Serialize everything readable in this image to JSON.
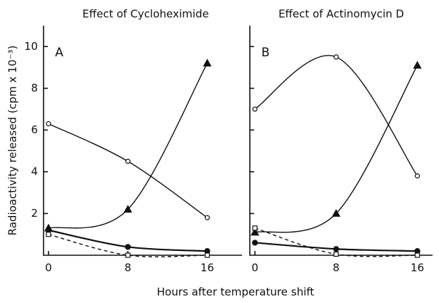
{
  "ylabel": "Radioactivity released (cpm x 10⁻³)",
  "xlabel": "Hours after temperature shift",
  "chart_data": [
    {
      "type": "line",
      "title": "Effect of Cycloheximide",
      "panel": "A",
      "x": [
        0,
        8,
        16
      ],
      "xlim": [
        -0.5,
        19.5
      ],
      "xticks": [
        0,
        8,
        16
      ],
      "ylim": [
        0,
        11
      ],
      "yticks": [
        2,
        4,
        6,
        8,
        10
      ],
      "ytick_labels": true,
      "series": [
        {
          "marker": "circle",
          "filled": false,
          "dashed": false,
          "color": "#111111",
          "values": [
            6.3,
            4.5,
            1.8
          ]
        },
        {
          "marker": "triangle",
          "filled": true,
          "dashed": false,
          "color": "#111111",
          "values": [
            1.3,
            2.2,
            9.2
          ]
        },
        {
          "marker": "circle",
          "filled": true,
          "dashed": false,
          "color": "#111111",
          "values": [
            1.2,
            0.4,
            0.2
          ]
        },
        {
          "marker": "square",
          "filled": false,
          "dashed": true,
          "color": "#111111",
          "values": [
            1.0,
            0.0,
            0.0
          ]
        }
      ]
    },
    {
      "type": "line",
      "title": "Effect of Actinomycin D",
      "panel": "B",
      "x": [
        0,
        8,
        16
      ],
      "xlim": [
        -0.5,
        17.5
      ],
      "xticks": [
        0,
        8,
        16
      ],
      "ylim": [
        0,
        11
      ],
      "yticks": [
        2,
        4,
        6,
        8,
        10
      ],
      "ytick_labels": false,
      "series": [
        {
          "marker": "circle",
          "filled": false,
          "dashed": false,
          "color": "#111111",
          "values": [
            7.0,
            9.5,
            3.8
          ]
        },
        {
          "marker": "triangle",
          "filled": true,
          "dashed": false,
          "color": "#111111",
          "values": [
            1.1,
            2.0,
            9.1
          ]
        },
        {
          "marker": "circle",
          "filled": true,
          "dashed": false,
          "color": "#111111",
          "values": [
            0.6,
            0.3,
            0.2
          ]
        },
        {
          "marker": "square",
          "filled": false,
          "dashed": true,
          "color": "#111111",
          "values": [
            1.3,
            0.05,
            0.0
          ]
        }
      ]
    }
  ]
}
